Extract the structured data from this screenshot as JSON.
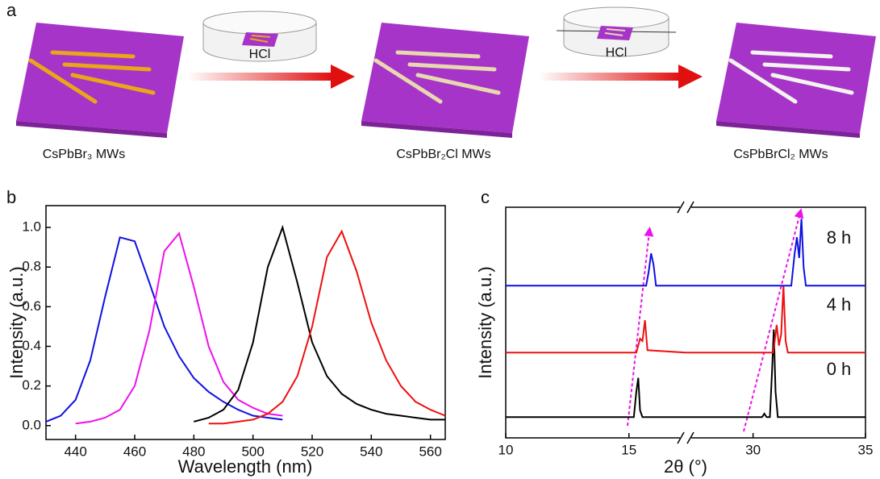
{
  "panel_a": {
    "letter": "a",
    "reagent_1": "HCl",
    "reagent_2": "HCl",
    "labels": [
      "CsPbBr₃ MWs",
      "CsPbBr₂Cl MWs",
      "CsPbBrCl₂ MWs"
    ]
  },
  "chart_data": [
    {
      "type": "line",
      "letter": "b",
      "xlabel": "Wavelength (nm)",
      "ylabel": "Intensity (a.u.)",
      "x": [
        430,
        435,
        440,
        445,
        450,
        455,
        460,
        465,
        470,
        475,
        480,
        485,
        490,
        495,
        500,
        505,
        510,
        515,
        520,
        525,
        530,
        535,
        540,
        545,
        550,
        555,
        560,
        565
      ],
      "series": [
        {
          "color": "#1010e0",
          "values": [
            0.02,
            0.05,
            0.13,
            0.33,
            0.65,
            0.95,
            0.93,
            0.72,
            0.5,
            0.35,
            0.24,
            0.17,
            0.12,
            0.08,
            0.05,
            0.04,
            0.03,
            null,
            null,
            null,
            null,
            null,
            null,
            null,
            null,
            null,
            null,
            null
          ]
        },
        {
          "color": "#ee10ee",
          "values": [
            null,
            null,
            0.01,
            0.02,
            0.04,
            0.08,
            0.2,
            0.48,
            0.88,
            0.97,
            0.7,
            0.4,
            0.22,
            0.13,
            0.09,
            0.06,
            0.05,
            null,
            null,
            null,
            null,
            null,
            null,
            null,
            null,
            null,
            null,
            null
          ]
        },
        {
          "color": "#000000",
          "values": [
            null,
            null,
            null,
            null,
            null,
            null,
            null,
            null,
            null,
            null,
            0.02,
            0.04,
            0.08,
            0.18,
            0.42,
            0.8,
            1.0,
            0.72,
            0.42,
            0.25,
            0.16,
            0.11,
            0.08,
            0.06,
            0.05,
            0.04,
            0.03,
            0.03
          ]
        },
        {
          "color": "#ee1010",
          "values": [
            null,
            null,
            null,
            null,
            null,
            null,
            null,
            null,
            null,
            null,
            null,
            0.01,
            0.01,
            0.02,
            0.03,
            0.06,
            0.12,
            0.25,
            0.5,
            0.85,
            0.98,
            0.78,
            0.52,
            0.33,
            0.2,
            0.12,
            0.08,
            0.05
          ]
        }
      ],
      "xlim": [
        430,
        565
      ],
      "xticks": [
        440,
        460,
        480,
        500,
        520,
        540,
        560
      ],
      "ylim": [
        -0.07,
        1.11
      ],
      "yticks": [
        {
          "value": 0,
          "label": "0.0"
        },
        0.2,
        0.4,
        0.6,
        0.8,
        {
          "value": 1,
          "label": "1.0"
        }
      ]
    },
    {
      "type": "line",
      "letter": "c",
      "xlabel": "2θ (°)",
      "ylabel": "Intensity (a.u.)",
      "xlims": [
        [
          10,
          17.3
        ],
        [
          27,
          35
        ]
      ],
      "xticks": [
        10,
        15,
        30,
        35
      ],
      "ylim": [
        0,
        100
      ],
      "series": [
        {
          "name": "0 h",
          "color": "#000000",
          "x": [
            10,
            15.2,
            15.3,
            15.38,
            15.45,
            15.55,
            17.3,
            null,
            27,
            30.4,
            30.5,
            30.6,
            30.75,
            30.85,
            30.92,
            31.0,
            31.1,
            35
          ],
          "values": [
            9,
            9,
            20,
            26,
            12,
            9,
            9,
            null,
            9,
            9,
            10.5,
            9,
            9,
            30,
            47,
            20,
            9,
            9
          ]
        },
        {
          "name": "4 h",
          "color": "#ee1010",
          "x": [
            10,
            15.3,
            15.45,
            15.55,
            15.65,
            15.75,
            17.3,
            null,
            27,
            30.9,
            31.05,
            31.15,
            31.25,
            31.35,
            31.45,
            31.55,
            35
          ],
          "values": [
            37,
            37,
            43,
            42,
            51,
            38,
            37,
            null,
            37,
            37,
            49,
            40,
            45,
            66,
            42,
            37,
            37
          ]
        },
        {
          "name": "8 h",
          "color": "#1010e0",
          "x": [
            10,
            15.7,
            15.8,
            15.9,
            16.0,
            16.1,
            17.3,
            null,
            27,
            31.7,
            31.85,
            31.95,
            32.05,
            32.15,
            32.25,
            32.35,
            35
          ],
          "values": [
            66,
            66,
            72,
            80,
            75,
            66,
            66,
            null,
            66,
            66,
            80,
            87,
            78,
            95,
            74,
            66,
            66
          ]
        }
      ]
    }
  ]
}
